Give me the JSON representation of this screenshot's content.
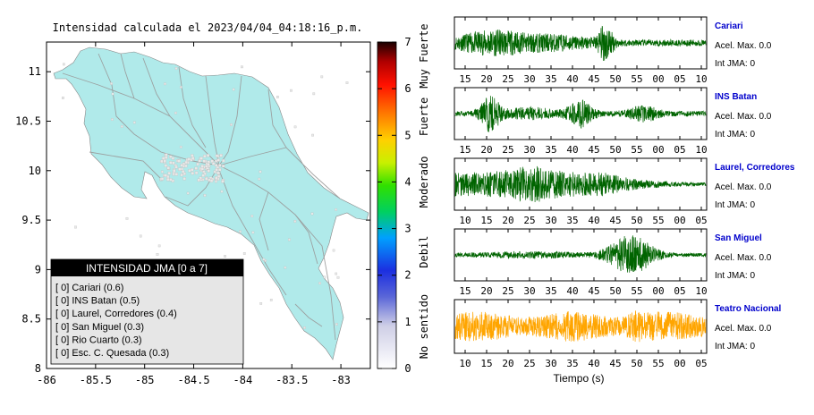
{
  "map": {
    "title": "Intensidad calculada el 2023/04/04_04:18:16_p.m.",
    "x_ticks": [
      "-86",
      "-85.5",
      "-85",
      "-84.5",
      "-84",
      "-83.5",
      "-83"
    ],
    "x_values": [
      -86,
      -85.5,
      -85,
      -84.5,
      -84,
      -83.5,
      -83
    ],
    "y_ticks": [
      "11",
      "10.5",
      "10",
      "9.5",
      "9",
      "8.5",
      "8"
    ],
    "y_values": [
      11,
      10.5,
      10,
      9.5,
      9,
      8.5,
      8
    ],
    "xlim": [
      -86,
      -82.7
    ],
    "ylim": [
      8,
      11.3
    ],
    "land_color": "#b0eaea",
    "legend": {
      "title": "INTENSIDAD JMA [0 a 7]",
      "items": [
        "[ 0]  Cariari (0.6)",
        "[ 0]  INS Batan (0.5)",
        "[ 0]  Laurel, Corredores (0.4)",
        "[ 0]  San Miguel (0.3)",
        "[ 0]  Rio Cuarto (0.3)",
        "[ 0]  Esc. C. Quesada (0.3)"
      ]
    }
  },
  "colorbar": {
    "ticks": [
      "0",
      "1",
      "2",
      "3",
      "4",
      "5",
      "6",
      "7"
    ],
    "values": [
      0,
      1,
      2,
      3,
      4,
      5,
      6,
      7
    ],
    "labels": [
      "No sentido",
      "Debil",
      "Moderado",
      "Fuerte",
      "Muy Fuerte"
    ],
    "label_values": [
      0.9,
      2.5,
      4,
      5.4,
      6.7
    ]
  },
  "chart_data": {
    "type": "line",
    "xlabel": "Tiempo (s)",
    "traces": [
      {
        "name": "Cariari",
        "acel": "Acel. Max. 0.0",
        "int": "Int JMA: 0",
        "color": "#006400",
        "ticks": [
          "15",
          "20",
          "25",
          "30",
          "35",
          "40",
          "45",
          "50",
          "55",
          "00",
          "05",
          "10"
        ],
        "peak": 0.9
      },
      {
        "name": "INS Batan",
        "acel": "Acel. Max. 0.0",
        "int": "Int JMA: 0",
        "color": "#006400",
        "ticks": [
          "15",
          "20",
          "25",
          "30",
          "35",
          "40",
          "45",
          "50",
          "55",
          "00",
          "05",
          "10"
        ],
        "peak": 0.9
      },
      {
        "name": "Laurel, Corredores",
        "acel": "Acel. Max. 0.0",
        "int": "Int JMA: 0",
        "color": "#006400",
        "ticks": [
          "10",
          "15",
          "20",
          "25",
          "30",
          "35",
          "40",
          "45",
          "50",
          "55",
          "00",
          "05"
        ],
        "peak": 0.9
      },
      {
        "name": "San Miguel",
        "acel": "Acel. Max. 0.0",
        "int": "Int JMA: 0",
        "color": "#006400",
        "ticks": [
          "15",
          "20",
          "25",
          "30",
          "35",
          "40",
          "45",
          "50",
          "55",
          "00",
          "05",
          "10"
        ],
        "peak": 0.9
      },
      {
        "name": "Teatro Nacional",
        "acel": "Acel. Max. 0.0",
        "int": "Int JMA: 0",
        "color": "#ffa500",
        "ticks": [
          "10",
          "15",
          "20",
          "25",
          "30",
          "35",
          "40",
          "45",
          "50",
          "55",
          "00",
          "05"
        ],
        "peak": 0.9
      }
    ]
  }
}
